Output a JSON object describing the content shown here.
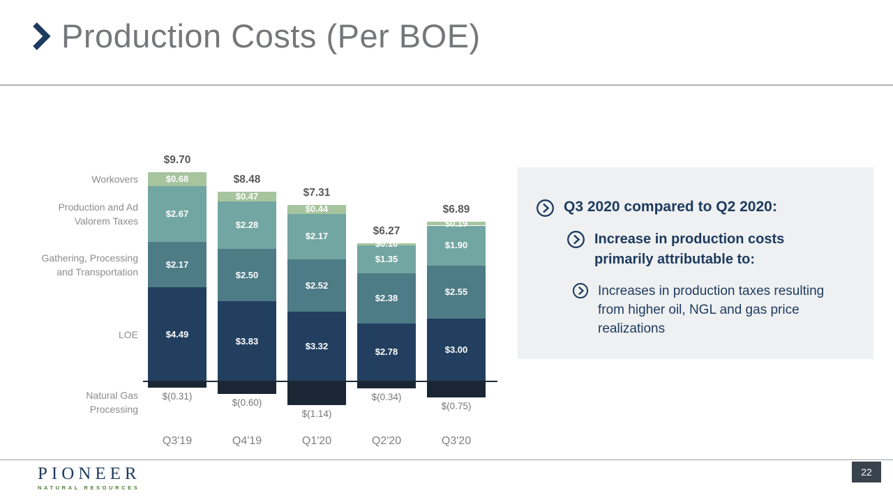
{
  "slide": {
    "title": "Production Costs (Per BOE)",
    "page_number": "22"
  },
  "logo": {
    "name": "PIONEER",
    "subtitle": "NATURAL RESOURCES"
  },
  "callout": {
    "bullet1": "Q3 2020 compared to Q2 2020:",
    "bullet2": "Increase in production costs primarily attributable to:",
    "bullet3": "Increases in production taxes resulting from higher oil, NGL and gas price realizations"
  },
  "chart_data": {
    "type": "bar",
    "stacked": true,
    "title": "Production Costs (Per BOE)",
    "categories": [
      "Q3'19",
      "Q4'19",
      "Q1'20",
      "Q2'20",
      "Q3'20"
    ],
    "totals": [
      "$9.70",
      "$8.48",
      "$7.31",
      "$6.27",
      "$6.89"
    ],
    "axis_labels": [
      [
        "Workovers"
      ],
      [
        "Production and Ad",
        "Valorem Taxes"
      ],
      [
        "Gathering, Processing",
        "and Transportation"
      ],
      [
        "LOE"
      ],
      [
        "Natural Gas",
        "Processing"
      ]
    ],
    "series": [
      {
        "name": "Workovers",
        "color": "#a6c49e",
        "values": [
          0.68,
          0.47,
          0.44,
          0.1,
          0.19
        ],
        "labels": [
          "$0.68",
          "$0.47",
          "$0.44",
          "$0.10",
          "$0.19"
        ]
      },
      {
        "name": "Production and Ad Valorem Taxes",
        "color": "#72a6a2",
        "values": [
          2.67,
          2.28,
          2.17,
          1.35,
          1.9
        ],
        "labels": [
          "$2.67",
          "$2.28",
          "$2.17",
          "$1.35",
          "$1.90"
        ]
      },
      {
        "name": "Gathering, Processing and Transportation",
        "color": "#4d7b86",
        "values": [
          2.17,
          2.5,
          2.52,
          2.38,
          2.55
        ],
        "labels": [
          "$2.17",
          "$2.50",
          "$2.52",
          "$2.38",
          "$2.55"
        ]
      },
      {
        "name": "LOE",
        "color": "#223f5f",
        "values": [
          4.49,
          3.83,
          3.32,
          2.78,
          3.0
        ],
        "labels": [
          "$4.49",
          "$3.83",
          "$3.32",
          "$2.78",
          "$3.00"
        ]
      },
      {
        "name": "Natural Gas Processing",
        "color": "#1a2633",
        "values": [
          -0.31,
          -0.6,
          -1.14,
          -0.34,
          -0.75
        ],
        "labels": [
          "$(0.31)",
          "$(0.60)",
          "$(1.14)",
          "$(0.34)",
          "$(0.75)"
        ]
      }
    ],
    "ylim": [
      -1.2,
      10.1
    ],
    "grid": false,
    "legend_position": "left-axis-labels"
  }
}
